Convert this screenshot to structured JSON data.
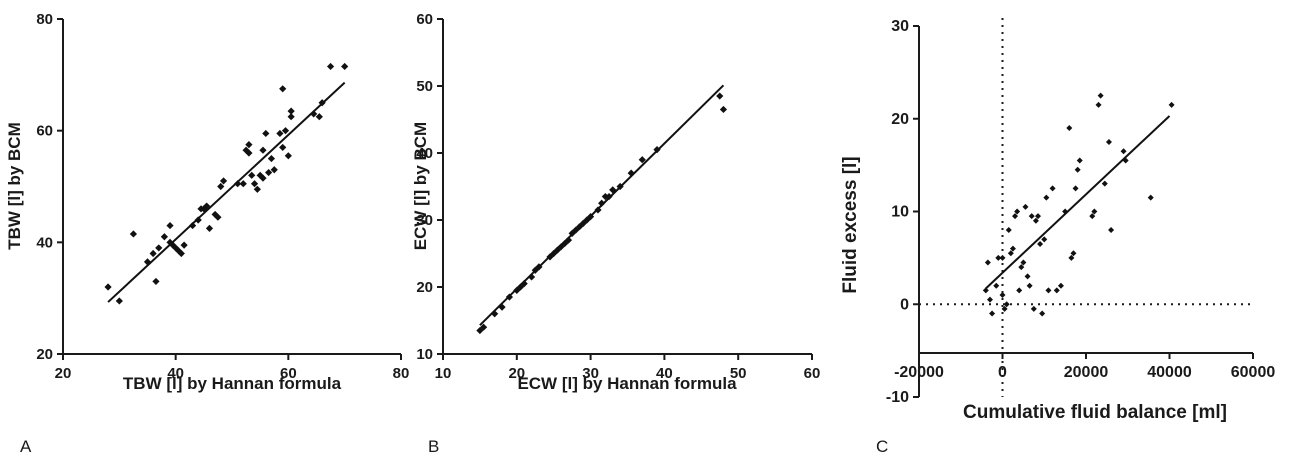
{
  "chart_data": [
    {
      "type": "scatter",
      "panel_letter": "A",
      "xlabel": "TBW [l] by Hannan formula",
      "ylabel": "TBW [l] by BCM",
      "xlim": [
        20,
        80
      ],
      "ylim": [
        20,
        80
      ],
      "xticks": [
        20,
        40,
        60,
        80
      ],
      "yticks": [
        20,
        40,
        60,
        80
      ],
      "points": [
        [
          28,
          32
        ],
        [
          30,
          29.5
        ],
        [
          32.5,
          41.5
        ],
        [
          35,
          36.5
        ],
        [
          36,
          38
        ],
        [
          36.5,
          33
        ],
        [
          37,
          39
        ],
        [
          38,
          41
        ],
        [
          39,
          40
        ],
        [
          39,
          43
        ],
        [
          39.5,
          39.5
        ],
        [
          40,
          39
        ],
        [
          40.5,
          38.5
        ],
        [
          41,
          38
        ],
        [
          41.5,
          39.5
        ],
        [
          43,
          43
        ],
        [
          44,
          44
        ],
        [
          44.5,
          46
        ],
        [
          45,
          46
        ],
        [
          45.5,
          46.5
        ],
        [
          46,
          42.5
        ],
        [
          47,
          45
        ],
        [
          47.5,
          44.5
        ],
        [
          48,
          50
        ],
        [
          48.5,
          51
        ],
        [
          51,
          50.5
        ],
        [
          52,
          50.5
        ],
        [
          52.5,
          56.5
        ],
        [
          53,
          56
        ],
        [
          53,
          57.5
        ],
        [
          53.5,
          52
        ],
        [
          54,
          50.5
        ],
        [
          54.5,
          49.5
        ],
        [
          55,
          52
        ],
        [
          55.5,
          51.5
        ],
        [
          55.5,
          56.5
        ],
        [
          56,
          59.5
        ],
        [
          56.5,
          52.5
        ],
        [
          57,
          55
        ],
        [
          57.5,
          53
        ],
        [
          58.5,
          59.5
        ],
        [
          59,
          57
        ],
        [
          59.5,
          60
        ],
        [
          59,
          67.5
        ],
        [
          60,
          55.5
        ],
        [
          60.5,
          62.5
        ],
        [
          60.5,
          63.5
        ],
        [
          64.5,
          63
        ],
        [
          65.5,
          62.5
        ],
        [
          66,
          65
        ],
        [
          67.5,
          71.5
        ],
        [
          70,
          71.5
        ]
      ],
      "fit_line": [
        [
          28,
          29.3
        ],
        [
          70,
          68.6
        ]
      ]
    },
    {
      "type": "scatter",
      "panel_letter": "B",
      "xlabel": "ECW [l] by Hannan formula",
      "ylabel": "ECW [l] by BCM",
      "xlim": [
        10,
        60
      ],
      "ylim": [
        10,
        60
      ],
      "xticks": [
        10,
        20,
        30,
        40,
        50,
        60
      ],
      "yticks": [
        10,
        20,
        30,
        40,
        50,
        60
      ],
      "points": [
        [
          15,
          13.5
        ],
        [
          15.5,
          14
        ],
        [
          17,
          16
        ],
        [
          18,
          17
        ],
        [
          19,
          18.5
        ],
        [
          20,
          19.5
        ],
        [
          20.5,
          20
        ],
        [
          21,
          20.5
        ],
        [
          22,
          21.5
        ],
        [
          22.5,
          22.5
        ],
        [
          23,
          23
        ],
        [
          24.5,
          24.5
        ],
        [
          25,
          25
        ],
        [
          25.5,
          25.5
        ],
        [
          26,
          26
        ],
        [
          26.5,
          26.5
        ],
        [
          27,
          27
        ],
        [
          27.5,
          28
        ],
        [
          28,
          28.5
        ],
        [
          28.5,
          29
        ],
        [
          29,
          29.5
        ],
        [
          29.5,
          30
        ],
        [
          30,
          30.5
        ],
        [
          31,
          31.5
        ],
        [
          31.5,
          32.5
        ],
        [
          32,
          33.5
        ],
        [
          32.5,
          33.5
        ],
        [
          33,
          34.5
        ],
        [
          34,
          35
        ],
        [
          35.5,
          37
        ],
        [
          37,
          39
        ],
        [
          39,
          40.5
        ],
        [
          47.5,
          48.5
        ],
        [
          48,
          46.5
        ]
      ],
      "fit_line": [
        [
          15,
          14.3
        ],
        [
          48,
          50.1
        ]
      ]
    },
    {
      "type": "scatter",
      "panel_letter": "C",
      "xlabel": "Cumulative fluid balance [ml]",
      "ylabel": "Fluid excess [l]",
      "xlim": [
        -20000,
        60000
      ],
      "ylim": [
        -10,
        30
      ],
      "xticks": [
        -20000,
        0,
        20000,
        40000,
        60000
      ],
      "yticks": [
        -10,
        0,
        10,
        20,
        30
      ],
      "reference_lines": {
        "x": 0,
        "y": 0,
        "style": "dotted"
      },
      "points": [
        [
          -4000,
          1.5
        ],
        [
          -3500,
          4.5
        ],
        [
          -3000,
          0.5
        ],
        [
          -2500,
          -1
        ],
        [
          -1500,
          2
        ],
        [
          -1000,
          5
        ],
        [
          0,
          5
        ],
        [
          0,
          1
        ],
        [
          500,
          -0.5
        ],
        [
          1000,
          0
        ],
        [
          1500,
          8
        ],
        [
          2000,
          5.5
        ],
        [
          2500,
          6
        ],
        [
          3000,
          9.5
        ],
        [
          3500,
          10
        ],
        [
          4000,
          1.5
        ],
        [
          4500,
          4
        ],
        [
          5000,
          4.5
        ],
        [
          5500,
          10.5
        ],
        [
          6000,
          3
        ],
        [
          6500,
          2
        ],
        [
          7000,
          9.5
        ],
        [
          7500,
          -0.5
        ],
        [
          8000,
          9
        ],
        [
          8500,
          9.5
        ],
        [
          9000,
          6.5
        ],
        [
          9500,
          -1
        ],
        [
          10000,
          7
        ],
        [
          10500,
          11.5
        ],
        [
          11000,
          1.5
        ],
        [
          12000,
          12.5
        ],
        [
          13000,
          1.5
        ],
        [
          14000,
          2
        ],
        [
          15000,
          10
        ],
        [
          16000,
          19
        ],
        [
          16500,
          5
        ],
        [
          17000,
          5.5
        ],
        [
          17500,
          12.5
        ],
        [
          18000,
          14.5
        ],
        [
          18500,
          15.5
        ],
        [
          21500,
          9.5
        ],
        [
          22000,
          10
        ],
        [
          23000,
          21.5
        ],
        [
          23500,
          22.5
        ],
        [
          24500,
          13
        ],
        [
          25500,
          17.5
        ],
        [
          26000,
          8
        ],
        [
          29000,
          16.5
        ],
        [
          29500,
          15.5
        ],
        [
          35500,
          11.5
        ],
        [
          40500,
          21.5
        ]
      ],
      "fit_line": [
        [
          -4000,
          1.7
        ],
        [
          40000,
          20.3
        ]
      ]
    }
  ]
}
